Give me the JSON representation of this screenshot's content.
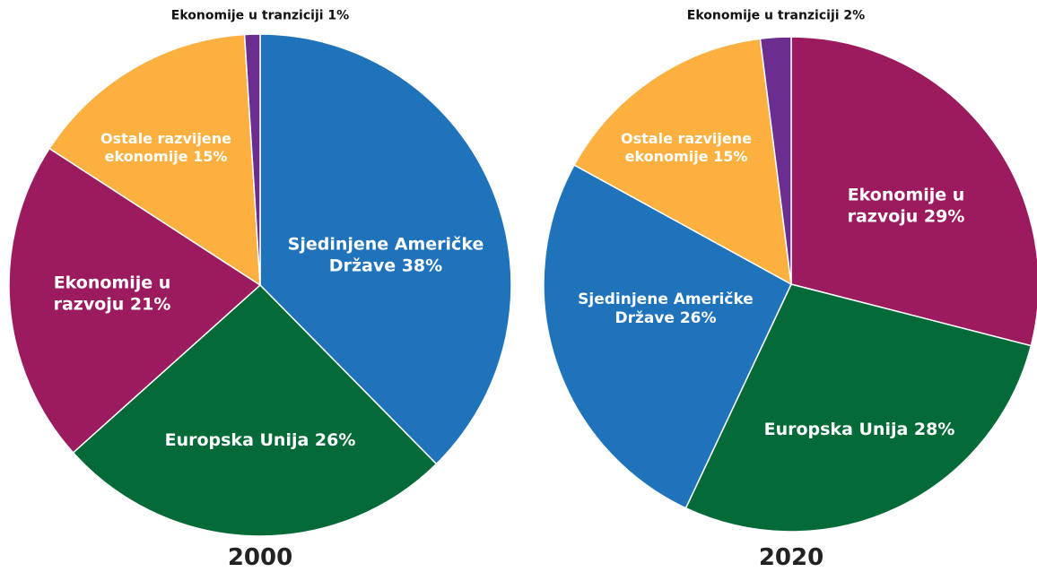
{
  "chart_data": [
    {
      "type": "pie",
      "title": "2000",
      "values": [
        38,
        26,
        21,
        15,
        1
      ],
      "value_labels": [
        "Sjedinjene Američke Države 38%",
        "Europska Unija 26%",
        "Ekonomije u razvoju 21%",
        "Ostale razvijene ekonomije 15%",
        "Ekonomije u tranziciji 1%"
      ],
      "colors": [
        "#1f73bb",
        "#046a38",
        "#9b1b5e",
        "#fbb040",
        "#6b2d8f"
      ]
    },
    {
      "type": "pie",
      "title": "2020",
      "values": [
        29,
        28,
        26,
        15,
        2
      ],
      "value_labels": [
        "Ekonomije u razvoju 29%",
        "Europska Unija 28%",
        "Sjedinjene Američke Države 26%",
        "Ostale razvijene ekonomije 15%",
        "Ekonomije u tranziciji 2%"
      ],
      "colors": [
        "#9b1b5e",
        "#046a38",
        "#1f73bb",
        "#fbb040",
        "#6b2d8f"
      ]
    }
  ]
}
